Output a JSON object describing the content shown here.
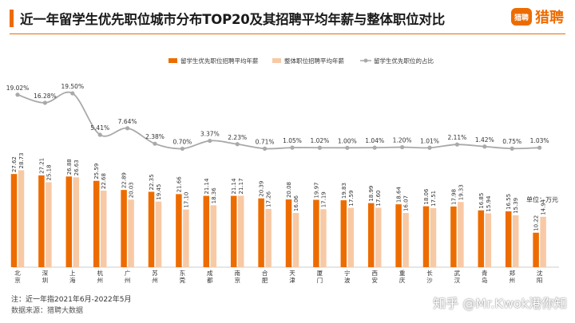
{
  "header": {
    "title": "近一年留学生优先职位城市分布TOP20及其招聘平均年薪与整体职位对比",
    "logo_badge": "猎聘",
    "logo_text": "猎聘"
  },
  "footer": {
    "note": "注：近一年指2021年6月-2022年5月",
    "source": "数据来源：猎聘大数据",
    "watermark": "知乎 @Mr.Kwok港你知"
  },
  "colors": {
    "accent": "#ed6c00",
    "series_primary": "#ed6c00",
    "series_secondary": "#f8c9a5",
    "line": "#a9a9a9",
    "text": "#1a1a1a"
  },
  "chart_data": {
    "type": "bar",
    "categories": [
      "北京",
      "深圳",
      "上海",
      "杭州",
      "广州",
      "苏州",
      "东莞",
      "成都",
      "南京",
      "合肥",
      "天津",
      "厦门",
      "宁波",
      "西安",
      "重庆",
      "长沙",
      "武汉",
      "青岛",
      "郑州",
      "沈阳"
    ],
    "series": [
      {
        "name": "留学生优先职位招聘平均年薪",
        "type": "bar",
        "values": [
          27.62,
          27.21,
          26.88,
          25.59,
          22.89,
          22.35,
          21.66,
          21.14,
          21.14,
          20.39,
          20.08,
          19.97,
          19.83,
          18.99,
          18.64,
          18.06,
          17.98,
          16.85,
          16.55,
          10.22
        ]
      },
      {
        "name": "整体职位招聘平均年薪",
        "type": "bar",
        "values": [
          28.73,
          25.18,
          26.63,
          22.68,
          20.03,
          19.45,
          17.1,
          18.36,
          21.17,
          17.26,
          16.06,
          17.19,
          17.59,
          17.6,
          16.07,
          17.51,
          19.33,
          15.94,
          15.39,
          14.94
        ]
      },
      {
        "name": "留学生优先职位的占比",
        "type": "line",
        "values": [
          "19.02%",
          "16.28%",
          "19.50%",
          "5.41%",
          "7.64%",
          "2.38%",
          "0.70%",
          "3.37%",
          "2.23%",
          "0.71%",
          "1.05%",
          "1.02%",
          "1.00%",
          "1.04%",
          "1.20%",
          "1.01%",
          "2.11%",
          "1.42%",
          "0.75%",
          "1.03%"
        ]
      }
    ],
    "unit_label": "单位：万元",
    "legend_position": "top-center",
    "grid": false
  }
}
